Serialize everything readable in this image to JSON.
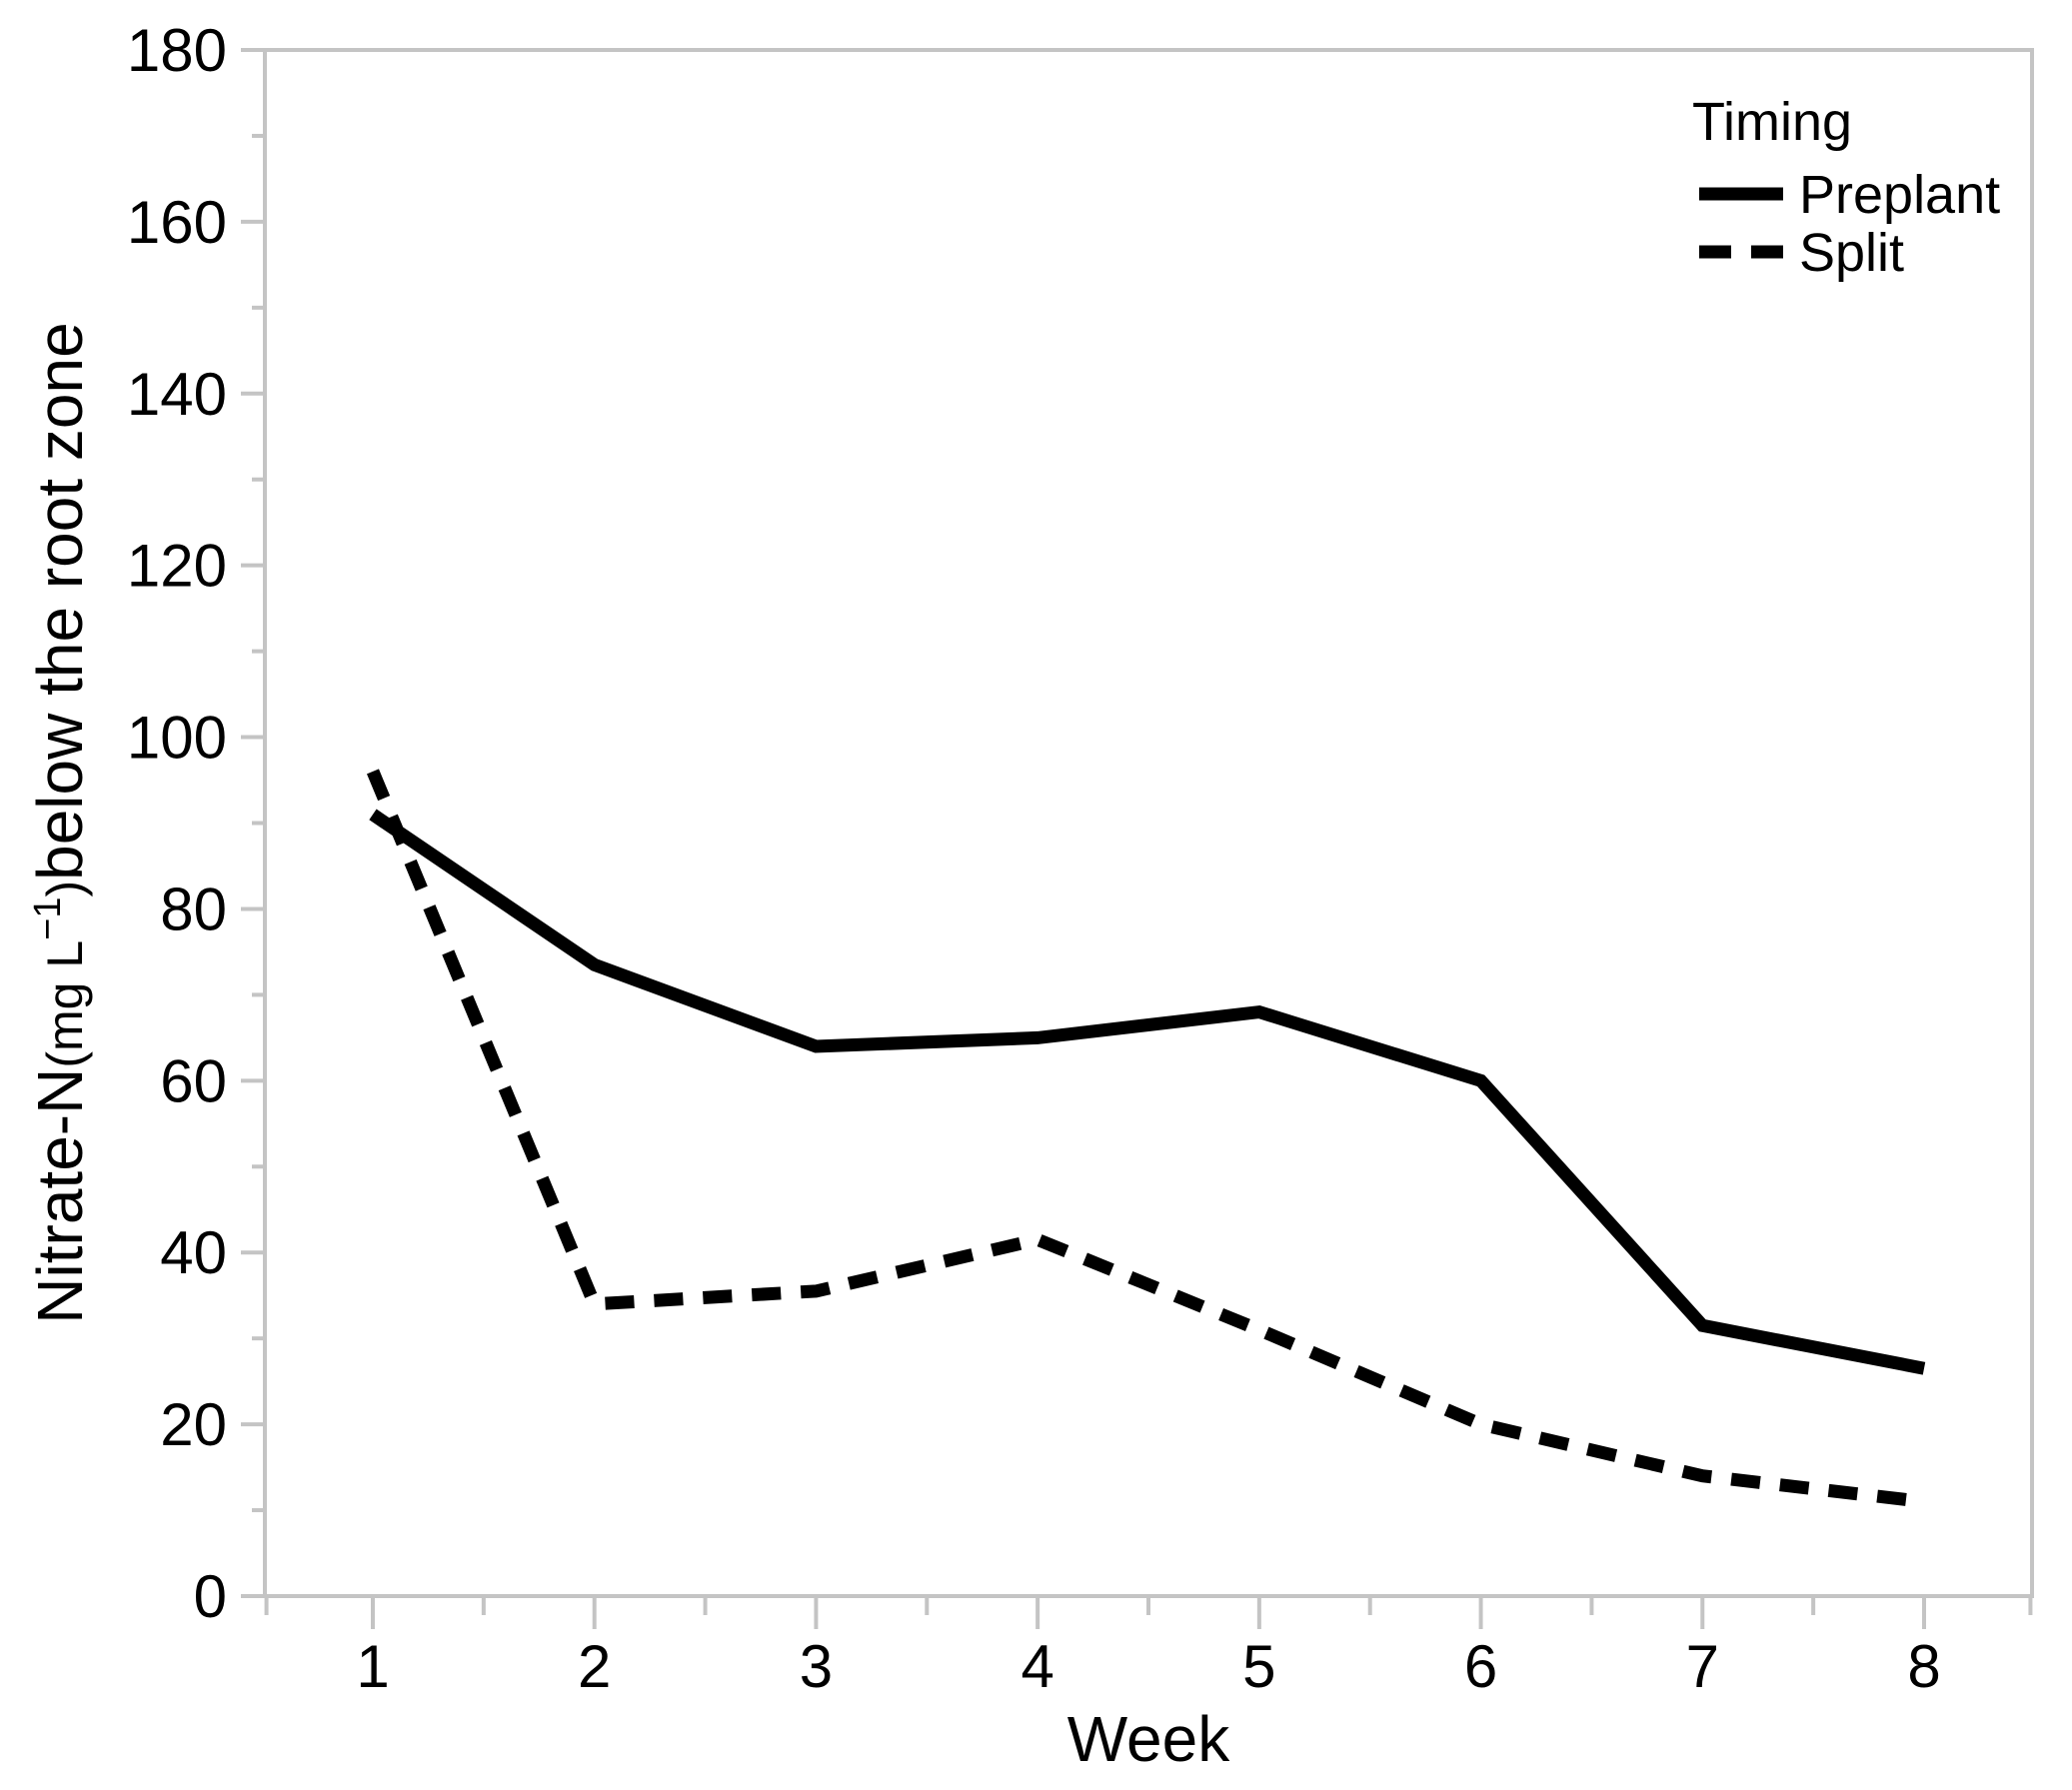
{
  "chart_data": {
    "type": "line",
    "title": "",
    "xlabel": "Week",
    "ylabel_text": "Nitrate-N(mg L−1)below the root zone",
    "ylabel_parts": [
      {
        "text": "Nitrate-N",
        "style": "main"
      },
      {
        "text": "(mg L",
        "style": "unit"
      },
      {
        "text": "−1",
        "style": "sup"
      },
      {
        "text": ")",
        "style": "unit"
      },
      {
        "text": "below the root zone",
        "style": "main"
      }
    ],
    "x": [
      1,
      2,
      3,
      4,
      5,
      6,
      7,
      8
    ],
    "xticklabels": [
      "1",
      "2",
      "3",
      "4",
      "5",
      "6",
      "7",
      "8"
    ],
    "x_minor_ticks": [
      0.52,
      1.5,
      2.5,
      3.5,
      4.5,
      5.5,
      6.5,
      7.5,
      8.48
    ],
    "ylim": [
      0,
      180
    ],
    "xlim_weeks": [
      0.513,
      8.487
    ],
    "yticks": [
      0,
      20,
      40,
      60,
      80,
      100,
      120,
      140,
      160,
      180
    ],
    "yticklabels": [
      "0",
      "20",
      "40",
      "60",
      "80",
      "100",
      "120",
      "140",
      "160",
      "180"
    ],
    "y_minor_ticks": [
      10,
      30,
      50,
      70,
      90,
      110,
      130,
      150,
      170
    ],
    "series": [
      {
        "name": "Preplant",
        "line_style": "solid",
        "values": [
          91,
          73.5,
          64,
          65,
          68,
          60,
          31.5,
          26.5
        ]
      },
      {
        "name": "Split",
        "line_style": "dashed",
        "values": [
          96,
          34,
          35.5,
          41.5,
          31,
          20,
          14,
          11
        ]
      }
    ],
    "legend": {
      "title": "Timing",
      "position": "top-right"
    },
    "grid": false,
    "colors": {
      "line": "#000000",
      "axis": "#c4c4c4",
      "text": "#000000",
      "background": "#ffffff"
    }
  }
}
